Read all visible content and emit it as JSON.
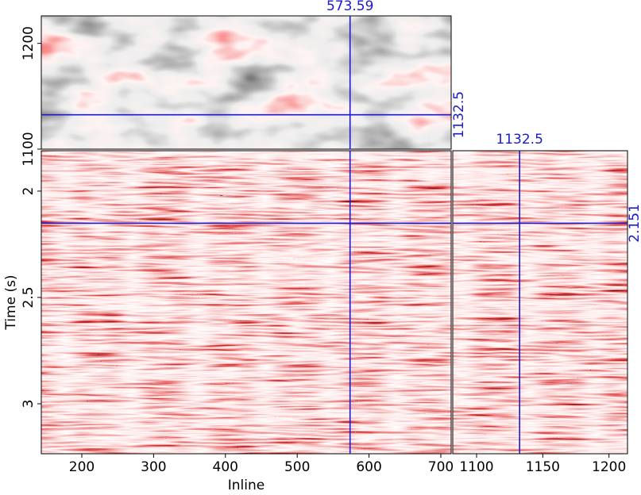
{
  "chart_data": [
    {
      "type": "seismic-slice",
      "xlim": [
        143.6,
        714.4
      ],
      "ylim": [
        1100,
        1226
      ],
      "yticks": [
        1100,
        1200
      ],
      "crosshair_x": 573.59,
      "crosshair_y": 1132.5
    },
    {
      "type": "seismic-section",
      "xlabel": "Inline",
      "ylabel": "Time (s)",
      "xlim": [
        143.6,
        714.4
      ],
      "ylim": [
        3.235,
        1.81
      ],
      "xticks": [
        200,
        300,
        400,
        500,
        600,
        700
      ],
      "yticks": [
        2,
        2.5,
        3
      ]
    },
    {
      "type": "seismic-section",
      "xlim": [
        1082,
        1214
      ],
      "ylim": [
        3.235,
        1.81
      ],
      "xticks": [
        1100,
        1150,
        1200
      ],
      "crosshair_x": 1132.5,
      "crosshair_y": 2.151
    }
  ]
}
